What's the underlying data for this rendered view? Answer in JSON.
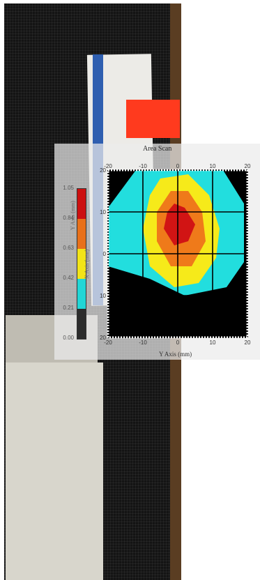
{
  "chart_data": {
    "type": "heatmap",
    "title": "Area Scan",
    "xlabel": "Y Axis (mm)",
    "ylabel": "X Axis (mm)",
    "colorbar_title": "Y Axis (mm)",
    "xlim": [
      -20,
      20
    ],
    "ylim": [
      -20,
      20
    ],
    "x_ticks": [
      -20,
      -10,
      0,
      10,
      20
    ],
    "y_ticks": [
      -20,
      -10,
      0,
      10,
      20
    ],
    "grid": true,
    "colorbar": {
      "labels": [
        "1.05",
        "0.84",
        "0.63",
        "0.42",
        "0.21",
        "0.00"
      ],
      "colors": [
        "#cc1010",
        "#e8701a",
        "#f2e418",
        "#22d6d6",
        "#2c2c2c"
      ]
    }
  },
  "colors": {
    "black": "#000000",
    "cyan": "#22dede",
    "yellow": "#f6ea1a",
    "orange": "#ef7a1a",
    "red": "#d11414"
  }
}
